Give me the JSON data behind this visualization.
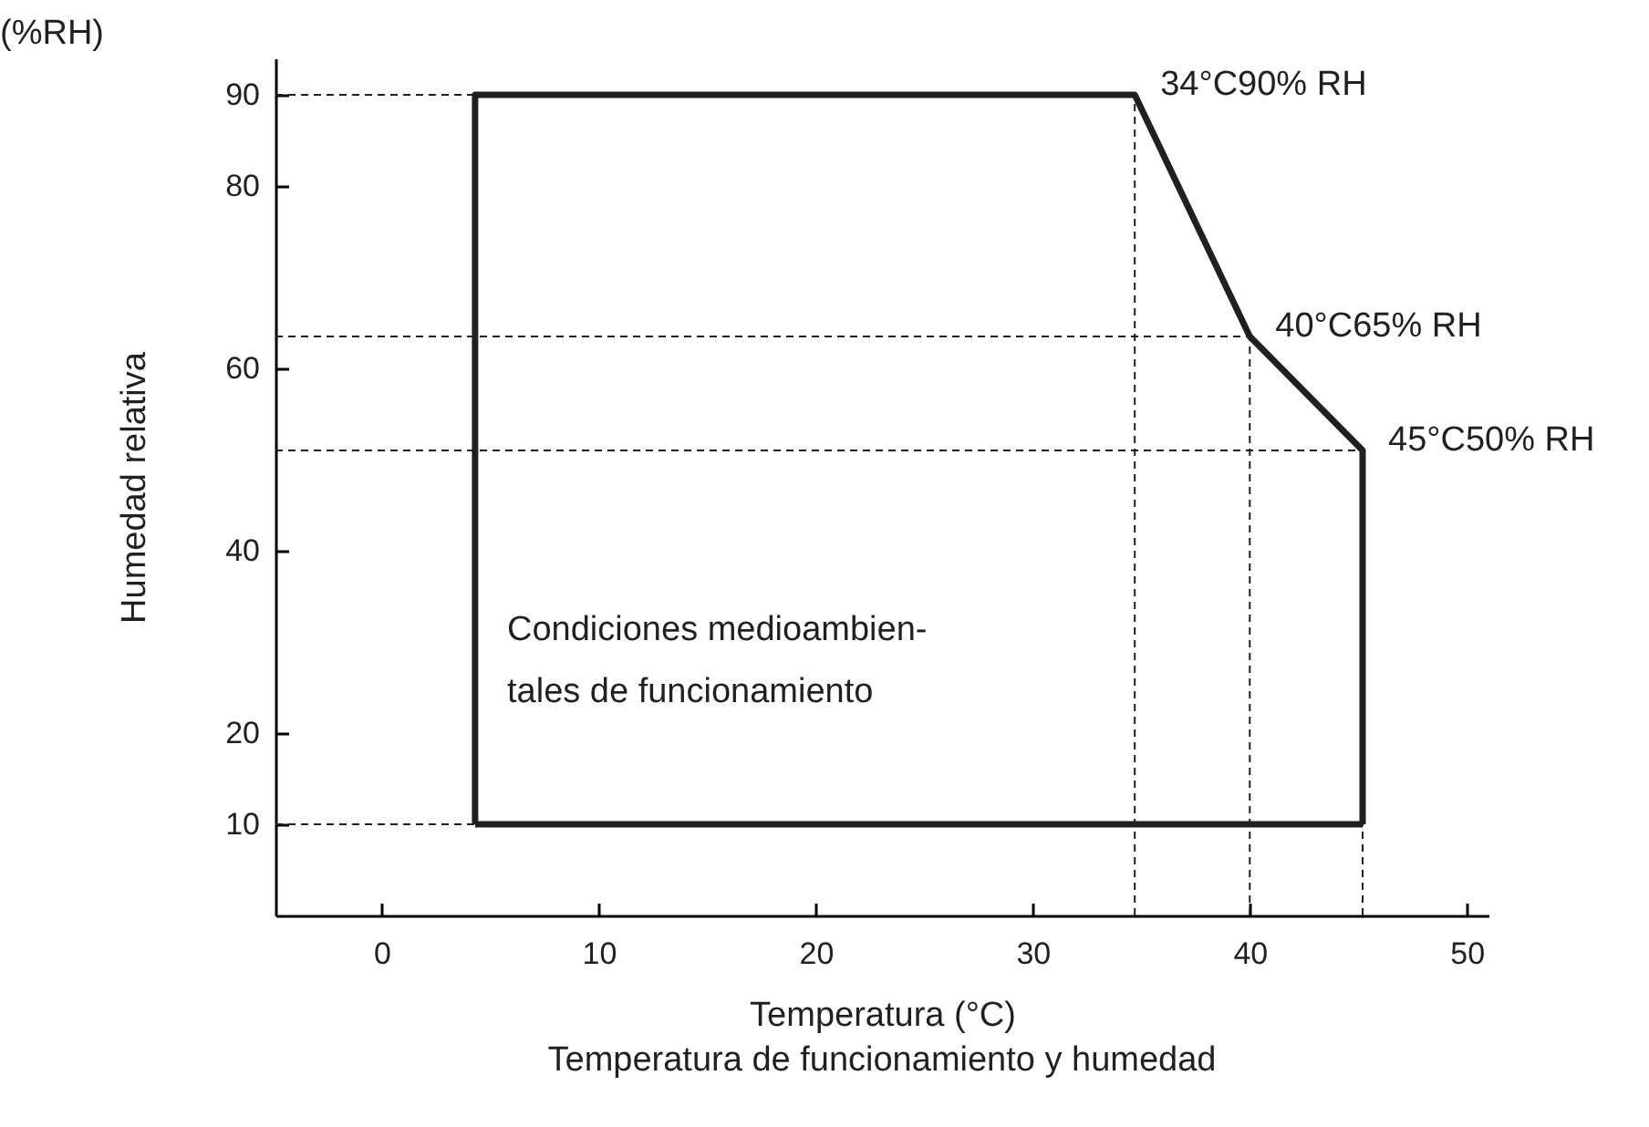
{
  "chart_data": {
    "type": "line",
    "title": "Temperatura de funcionamiento y humedad",
    "xlabel": "Temperatura (°C)",
    "ylabel": "Humedad relativa",
    "xlim": [
      -4.9,
      51
    ],
    "xticks": [
      0,
      10,
      20,
      30,
      40,
      50
    ],
    "ylim": [
      0,
      94
    ],
    "yticks": [
      10,
      20,
      40,
      60,
      80,
      90
    ],
    "grid": false,
    "legend": false,
    "series": [
      {
        "color": "#231f20",
        "line_style": "solid",
        "x": [
          4.3,
          4.3,
          34.7,
          40,
          45.2,
          45.2
        ],
        "values": [
          10,
          90,
          90,
          63.5,
          51,
          10
        ]
      },
      {
        "color": "#231f20",
        "line_style": "solid",
        "x": [
          4.3,
          45.2
        ],
        "values": [
          10,
          10
        ]
      },
      {
        "color": "#231f20",
        "line_style": "dashed",
        "x": [
          -4.9,
          4.3
        ],
        "values": [
          90,
          90
        ]
      },
      {
        "color": "#231f20",
        "line_style": "dashed",
        "x": [
          -4.9,
          40
        ],
        "values": [
          63.5,
          63.5
        ]
      },
      {
        "color": "#231f20",
        "line_style": "dashed",
        "x": [
          -4.9,
          45.2
        ],
        "values": [
          51,
          51
        ]
      },
      {
        "color": "#231f20",
        "line_style": "dashed",
        "x": [
          -4.9,
          4.3
        ],
        "values": [
          10,
          10
        ]
      },
      {
        "color": "#231f20",
        "line_style": "dashed",
        "x": [
          34.7,
          34.7
        ],
        "values": [
          0,
          90
        ]
      },
      {
        "color": "#231f20",
        "line_style": "dashed",
        "x": [
          40,
          40
        ],
        "values": [
          0,
          63.5
        ]
      },
      {
        "color": "#231f20",
        "line_style": "dashed",
        "x": [
          45.2,
          45.2
        ],
        "values": [
          0,
          10
        ]
      }
    ],
    "annotations": [
      {
        "text": "34°C90% RH",
        "x": 34.7,
        "y": 90
      },
      {
        "text": "40°C65% RH",
        "x": 40,
        "y": 63.5
      },
      {
        "text": "45°C50% RH",
        "x": 45.2,
        "y": 51
      },
      "(%RH)",
      "Condiciones medioambien-\ntales de funcionamiento"
    ]
  }
}
